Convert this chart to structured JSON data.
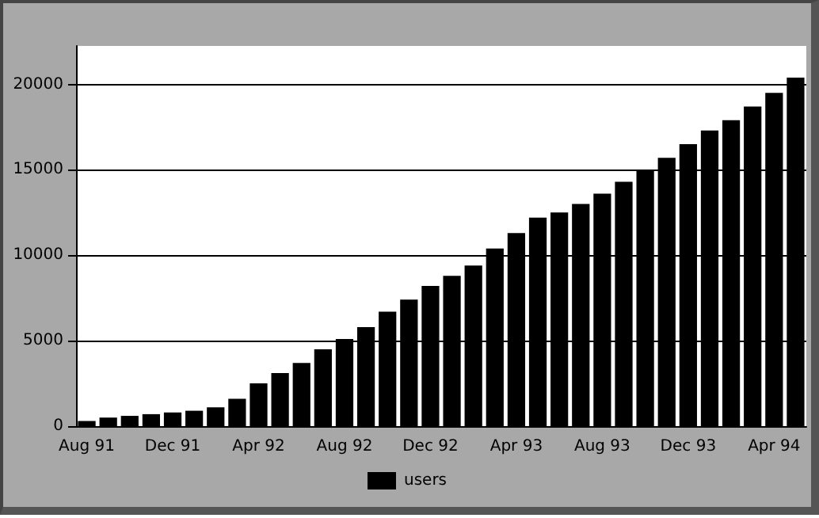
{
  "chart_data": {
    "type": "bar",
    "categories": [
      "Aug 91",
      null,
      null,
      null,
      "Dec 91",
      null,
      null,
      null,
      "Apr 92",
      null,
      null,
      null,
      "Aug 92",
      null,
      null,
      null,
      "Dec 92",
      null,
      null,
      null,
      "Apr 93",
      null,
      null,
      null,
      "Aug 93",
      null,
      null,
      null,
      "Dec 93",
      null,
      null,
      null,
      "Apr 94",
      null
    ],
    "series": [
      {
        "name": "users",
        "color": "#000000",
        "values": [
          300,
          500,
          600,
          700,
          800,
          900,
          1100,
          1600,
          2500,
          3100,
          3700,
          4500,
          5100,
          5800,
          6700,
          7400,
          8200,
          8800,
          9400,
          10400,
          11300,
          12200,
          12500,
          13000,
          13600,
          14300,
          15000,
          15700,
          16500,
          17300,
          17900,
          18700,
          19500,
          20400
        ]
      }
    ],
    "ylim": [
      0,
      22250
    ],
    "yticks": [
      0,
      5000,
      10000,
      15000,
      20000
    ],
    "grid": "y",
    "legend": "bottom"
  }
}
